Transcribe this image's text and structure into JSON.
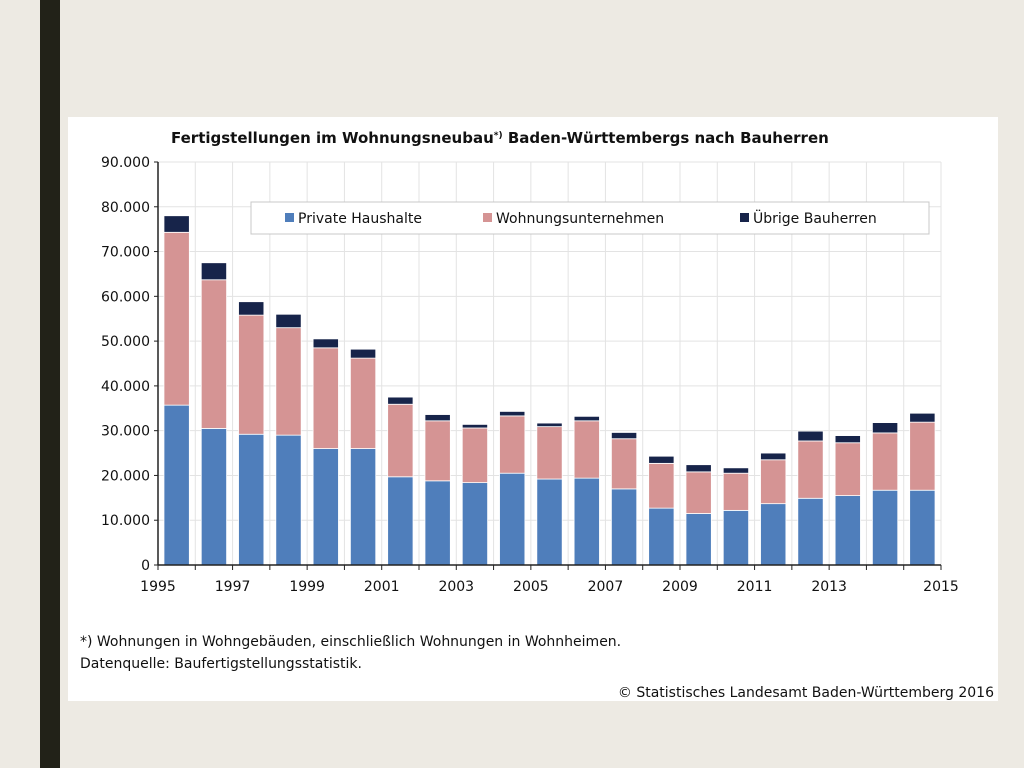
{
  "colors": {
    "private": "#4f7ebb",
    "companies": "#d59494",
    "other": "#17244a",
    "grid": "#e3e3e3",
    "axis": "#222222"
  },
  "chart_data": {
    "type": "bar",
    "stacked": true,
    "title": "Fertigstellungen im Wohnungsneubau",
    "title_marker": "*)",
    "title_suffix": "Baden-Württembergs nach Bauherren",
    "xlabel": "",
    "ylabel": "",
    "ylim": [
      0,
      90000
    ],
    "yticks": [
      0,
      10000,
      20000,
      30000,
      40000,
      50000,
      60000,
      70000,
      80000,
      90000
    ],
    "ytick_labels": [
      "0",
      "10.000",
      "20.000",
      "30.000",
      "40.000",
      "50.000",
      "60.000",
      "70.000",
      "80.000",
      "90.000"
    ],
    "grid": true,
    "legend_position": "top-right",
    "categories": [
      "1995",
      "1996",
      "1997",
      "1998",
      "1999",
      "2000",
      "2001",
      "2002",
      "2003",
      "2004",
      "2005",
      "2006",
      "2007",
      "2008",
      "2009",
      "2010",
      "2011",
      "2012",
      "2013",
      "2014",
      "2015"
    ],
    "xtick_labels": [
      "1995",
      "",
      "1997",
      "",
      "1999",
      "",
      "2001",
      "",
      "2003",
      "",
      "2005",
      "",
      "2007",
      "",
      "2009",
      "",
      "2011",
      "",
      "2013",
      "",
      "2015"
    ],
    "series": [
      {
        "name": "Private Haushalte",
        "color_key": "private",
        "values": [
          35700,
          30500,
          29200,
          29000,
          26000,
          26000,
          19700,
          18800,
          18400,
          20500,
          19200,
          19400,
          17000,
          12700,
          11500,
          12200,
          13700,
          14900,
          15500,
          16700,
          16700
        ]
      },
      {
        "name": "Wohnungsunternehmen",
        "color_key": "companies",
        "values": [
          38600,
          33200,
          26600,
          24000,
          22500,
          20200,
          16200,
          13400,
          12200,
          12800,
          11700,
          12800,
          11200,
          10000,
          9300,
          8300,
          9800,
          12800,
          11800,
          12800,
          15200
        ]
      },
      {
        "name": "Übrige Bauherren",
        "color_key": "other",
        "values": [
          3700,
          3800,
          3000,
          3000,
          2000,
          2000,
          1600,
          1400,
          800,
          1000,
          800,
          1000,
          1400,
          1600,
          1600,
          1200,
          1500,
          2200,
          1600,
          2300,
          2000
        ]
      }
    ]
  },
  "notes": {
    "footnote": "*) Wohnungen in Wohngebäuden, einschließlich Wohnungen in Wohnheimen.",
    "source": "Datenquelle: Baufertigstellungsstatistik.",
    "copyright": "© Statistisches Landesamt Baden-Württemberg 2016"
  }
}
